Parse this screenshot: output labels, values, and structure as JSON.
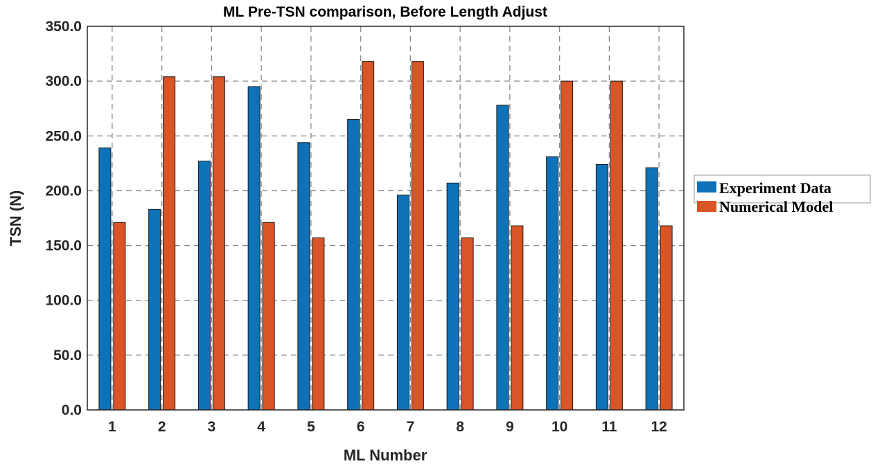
{
  "chart_data": {
    "type": "bar",
    "title": "ML Pre-TSN comparison, Before Length Adjust",
    "xlabel": "ML Number",
    "ylabel": "TSN (N)",
    "categories": [
      "1",
      "2",
      "3",
      "4",
      "5",
      "6",
      "7",
      "8",
      "9",
      "10",
      "11",
      "12"
    ],
    "ylim": [
      0,
      350
    ],
    "yticks": [
      0,
      50,
      100,
      150,
      200,
      250,
      300,
      350
    ],
    "ytick_labels": [
      "0.0",
      "50.0",
      "100.0",
      "150.0",
      "200.0",
      "250.0",
      "300.0",
      "350.0"
    ],
    "grid": true,
    "legend_position": "outside-right",
    "series": [
      {
        "name": "Experiment Data",
        "color": "#0e72b8",
        "values": [
          239,
          183,
          227,
          295,
          244,
          265,
          196,
          207,
          278,
          231,
          224,
          221
        ]
      },
      {
        "name": "Numerical Model",
        "color": "#d95427",
        "values": [
          171,
          304,
          304,
          171,
          157,
          318,
          318,
          157,
          168,
          300,
          300,
          168
        ]
      }
    ]
  }
}
